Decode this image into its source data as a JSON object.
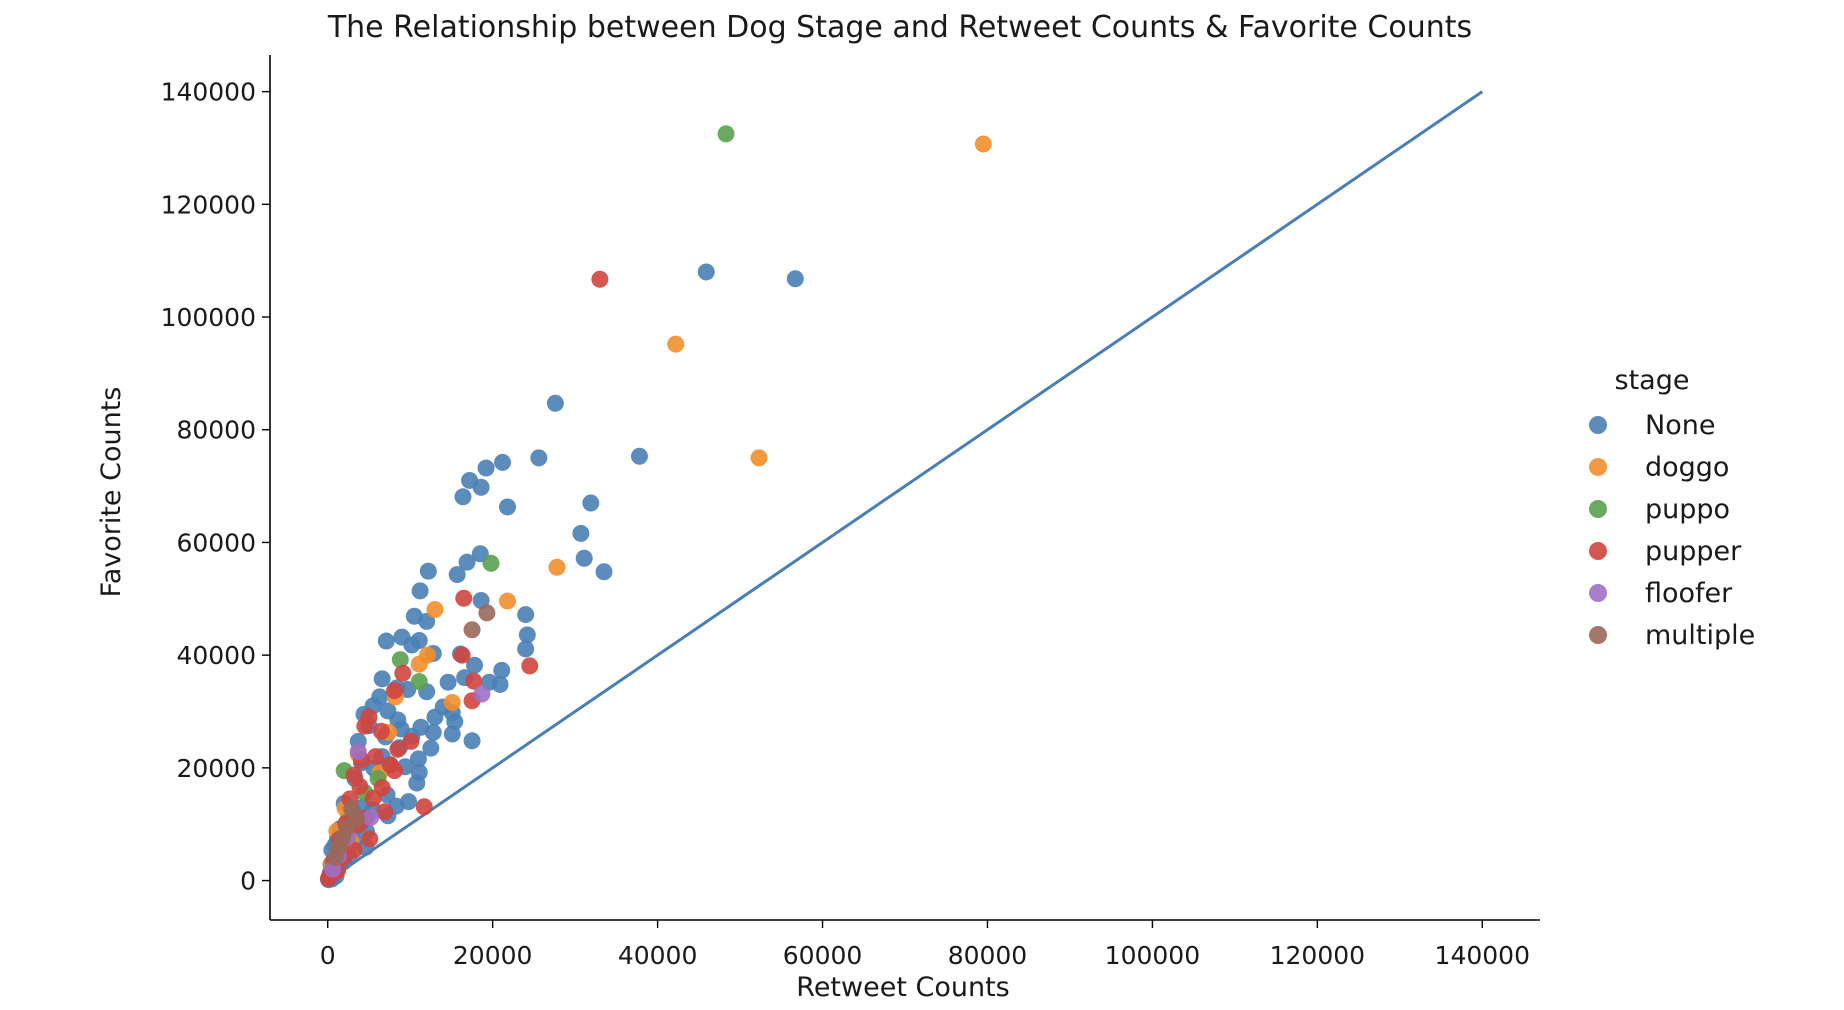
{
  "chart_data": {
    "type": "scatter",
    "title": "The Relationship between Dog Stage and Retweet Counts & Favorite Counts",
    "xlabel": "Retweet Counts",
    "ylabel": "Favorite Counts",
    "xlim": [
      -7000,
      147000
    ],
    "ylim": [
      -7000,
      146500
    ],
    "xticks": [
      0,
      20000,
      40000,
      60000,
      80000,
      100000,
      120000,
      140000
    ],
    "yticks": [
      0,
      20000,
      40000,
      60000,
      80000,
      100000,
      120000,
      140000
    ],
    "grid": false,
    "legend": {
      "title": "stage",
      "placement": "right"
    },
    "reference_line": {
      "x": [
        0,
        140000
      ],
      "y": [
        0,
        140000
      ],
      "color": "#4a7fb5"
    },
    "series": [
      {
        "name": "None",
        "color": "#4a7fb5",
        "points": [
          [
            45900,
            108000
          ],
          [
            56700,
            106800
          ],
          [
            27600,
            84700
          ],
          [
            37800,
            75300
          ],
          [
            25600,
            75000
          ],
          [
            21200,
            74200
          ],
          [
            19200,
            73200
          ],
          [
            17200,
            71000
          ],
          [
            18600,
            69800
          ],
          [
            16400,
            68100
          ],
          [
            31900,
            67000
          ],
          [
            21800,
            66300
          ],
          [
            30700,
            61600
          ],
          [
            31100,
            57200
          ],
          [
            33500,
            54800
          ],
          [
            18500,
            58000
          ],
          [
            16900,
            56500
          ],
          [
            15700,
            54300
          ],
          [
            12200,
            54900
          ],
          [
            11200,
            51400
          ],
          [
            18600,
            49700
          ],
          [
            24000,
            47200
          ],
          [
            10500,
            46900
          ],
          [
            12000,
            46000
          ],
          [
            24200,
            43600
          ],
          [
            9000,
            43200
          ],
          [
            11100,
            42600
          ],
          [
            24000,
            41100
          ],
          [
            7100,
            42500
          ],
          [
            10200,
            41800
          ],
          [
            12800,
            40300
          ],
          [
            16100,
            40200
          ],
          [
            17800,
            38200
          ],
          [
            21100,
            37300
          ],
          [
            20900,
            34800
          ],
          [
            19600,
            35200
          ],
          [
            14600,
            35200
          ],
          [
            16600,
            36000
          ],
          [
            12000,
            33500
          ],
          [
            6600,
            35800
          ],
          [
            8400,
            34200
          ],
          [
            9700,
            33900
          ],
          [
            14000,
            30800
          ],
          [
            15100,
            29800
          ],
          [
            13000,
            29000
          ],
          [
            15400,
            28200
          ],
          [
            11300,
            27200
          ],
          [
            12800,
            26300
          ],
          [
            15100,
            26000
          ],
          [
            17500,
            24800
          ],
          [
            10200,
            25600
          ],
          [
            12500,
            23500
          ],
          [
            8700,
            23600
          ],
          [
            11000,
            21600
          ],
          [
            9400,
            20200
          ],
          [
            11100,
            19200
          ],
          [
            6600,
            22000
          ],
          [
            10800,
            17300
          ],
          [
            4400,
            29500
          ],
          [
            5500,
            31000
          ],
          [
            6300,
            32600
          ],
          [
            7300,
            30100
          ],
          [
            8500,
            28500
          ],
          [
            5000,
            27500
          ],
          [
            3700,
            24700
          ],
          [
            7000,
            25500
          ],
          [
            8900,
            26900
          ],
          [
            4100,
            20900
          ],
          [
            5600,
            19900
          ],
          [
            7500,
            20600
          ],
          [
            3300,
            18100
          ],
          [
            7200,
            15200
          ],
          [
            9800,
            14000
          ],
          [
            8300,
            13200
          ],
          [
            7300,
            11500
          ],
          [
            5500,
            12500
          ],
          [
            4200,
            13000
          ],
          [
            2000,
            13700
          ],
          [
            3000,
            12400
          ],
          [
            2500,
            11000
          ],
          [
            3900,
            10000
          ],
          [
            4700,
            8700
          ],
          [
            1500,
            9200
          ],
          [
            2800,
            8300
          ],
          [
            1200,
            7600
          ],
          [
            3200,
            6800
          ],
          [
            900,
            6300
          ],
          [
            2200,
            5900
          ],
          [
            500,
            5400
          ],
          [
            1600,
            5000
          ],
          [
            2600,
            4300
          ],
          [
            4600,
            5900
          ],
          [
            900,
            3800
          ],
          [
            1900,
            3300
          ],
          [
            400,
            2900
          ],
          [
            1200,
            2400
          ],
          [
            700,
            1800
          ],
          [
            300,
            1300
          ],
          [
            1000,
            800
          ],
          [
            200,
            600
          ],
          [
            500,
            300
          ],
          [
            100,
            150
          ]
        ]
      },
      {
        "name": "doggo",
        "color": "#f28e2b",
        "points": [
          [
            79500,
            130700
          ],
          [
            42200,
            95200
          ],
          [
            52300,
            75000
          ],
          [
            27800,
            55600
          ],
          [
            21800,
            49600
          ],
          [
            13000,
            48100
          ],
          [
            12100,
            40000
          ],
          [
            11100,
            38400
          ],
          [
            15100,
            31600
          ],
          [
            8200,
            32600
          ],
          [
            7400,
            26300
          ],
          [
            3700,
            22400
          ],
          [
            6300,
            19100
          ],
          [
            2100,
            12800
          ],
          [
            1100,
            8800
          ],
          [
            2800,
            7000
          ],
          [
            500,
            3000
          ]
        ]
      },
      {
        "name": "puppo",
        "color": "#59a14f",
        "points": [
          [
            48300,
            132500
          ],
          [
            19800,
            56300
          ],
          [
            8800,
            39200
          ],
          [
            11100,
            35300
          ],
          [
            6100,
            18100
          ],
          [
            2000,
            19500
          ],
          [
            4500,
            15600
          ],
          [
            2700,
            10700
          ],
          [
            1400,
            6600
          ],
          [
            700,
            2500
          ]
        ]
      },
      {
        "name": "pupper",
        "color": "#d0453f",
        "points": [
          [
            33000,
            106700
          ],
          [
            16500,
            50100
          ],
          [
            24500,
            38100
          ],
          [
            16300,
            40000
          ],
          [
            17700,
            35400
          ],
          [
            17500,
            31900
          ],
          [
            9100,
            36800
          ],
          [
            8100,
            33700
          ],
          [
            5000,
            29000
          ],
          [
            6500,
            26500
          ],
          [
            4500,
            27400
          ],
          [
            10100,
            24700
          ],
          [
            8500,
            23300
          ],
          [
            5800,
            22000
          ],
          [
            7600,
            20500
          ],
          [
            4100,
            21400
          ],
          [
            3200,
            18700
          ],
          [
            6600,
            16500
          ],
          [
            8100,
            19500
          ],
          [
            11700,
            13100
          ],
          [
            5500,
            14600
          ],
          [
            3900,
            16700
          ],
          [
            2700,
            14500
          ],
          [
            6900,
            12200
          ],
          [
            3700,
            9900
          ],
          [
            4600,
            11100
          ],
          [
            2200,
            10100
          ],
          [
            5100,
            7400
          ],
          [
            1400,
            7300
          ],
          [
            3200,
            5400
          ],
          [
            2000,
            4200
          ],
          [
            700,
            3500
          ],
          [
            1200,
            1800
          ],
          [
            300,
            900
          ],
          [
            100,
            400
          ]
        ]
      },
      {
        "name": "floofer",
        "color": "#9f6fc5",
        "points": [
          [
            18700,
            33100
          ],
          [
            3700,
            22900
          ],
          [
            5200,
            11200
          ],
          [
            2400,
            7700
          ],
          [
            1300,
            4400
          ],
          [
            600,
            2000
          ]
        ]
      },
      {
        "name": "multiple",
        "color": "#99685a",
        "points": [
          [
            19300,
            47500
          ],
          [
            17500,
            44500
          ],
          [
            2900,
            12800
          ],
          [
            3500,
            11000
          ],
          [
            2300,
            9300
          ],
          [
            1800,
            7600
          ],
          [
            1300,
            5800
          ],
          [
            900,
            4100
          ]
        ]
      }
    ]
  }
}
